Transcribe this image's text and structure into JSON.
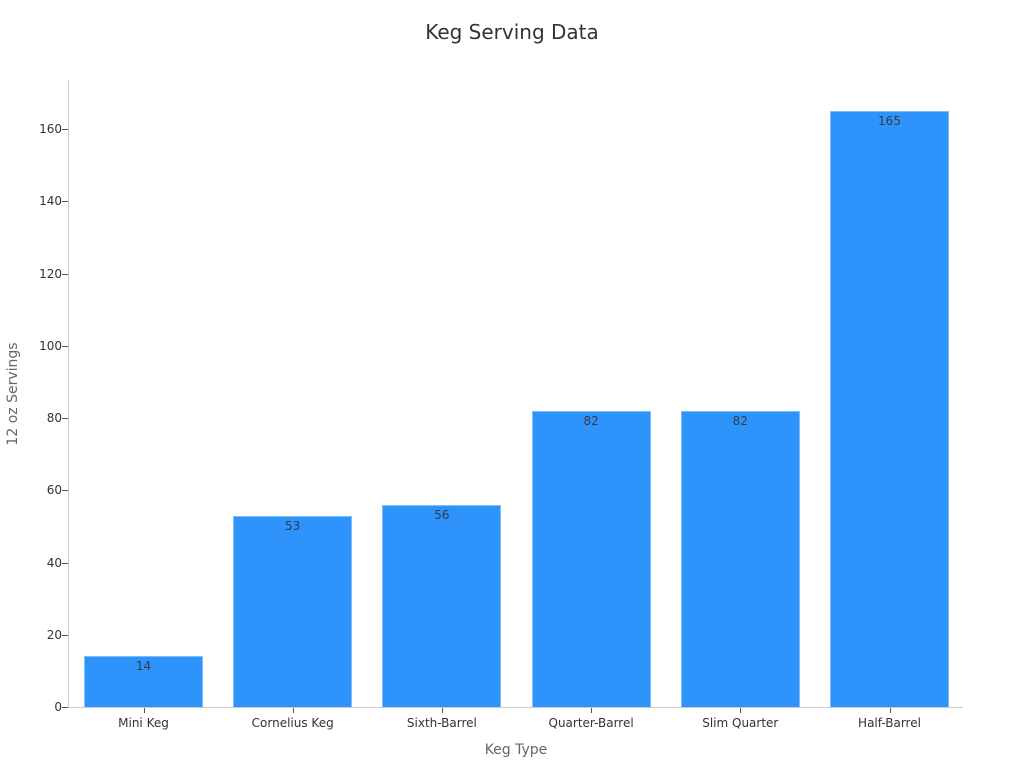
{
  "chart_data": {
    "type": "bar",
    "title": "Keg Serving Data",
    "xlabel": "Keg Type",
    "ylabel": "12 oz Servings",
    "categories": [
      "Mini Keg",
      "Cornelius Keg",
      "Sixth-Barrel",
      "Quarter-Barrel",
      "Slim Quarter",
      "Half-Barrel"
    ],
    "values": [
      14,
      53,
      56,
      82,
      82,
      165
    ],
    "data_labels": [
      "14",
      "53",
      "56",
      "82",
      "82",
      "165"
    ],
    "ylim": [
      0,
      173
    ],
    "yticks": [
      "0",
      "20",
      "40",
      "60",
      "80",
      "100",
      "120",
      "140",
      "160"
    ],
    "grid": false,
    "legend": null,
    "bar_color": "#2e93fa"
  }
}
